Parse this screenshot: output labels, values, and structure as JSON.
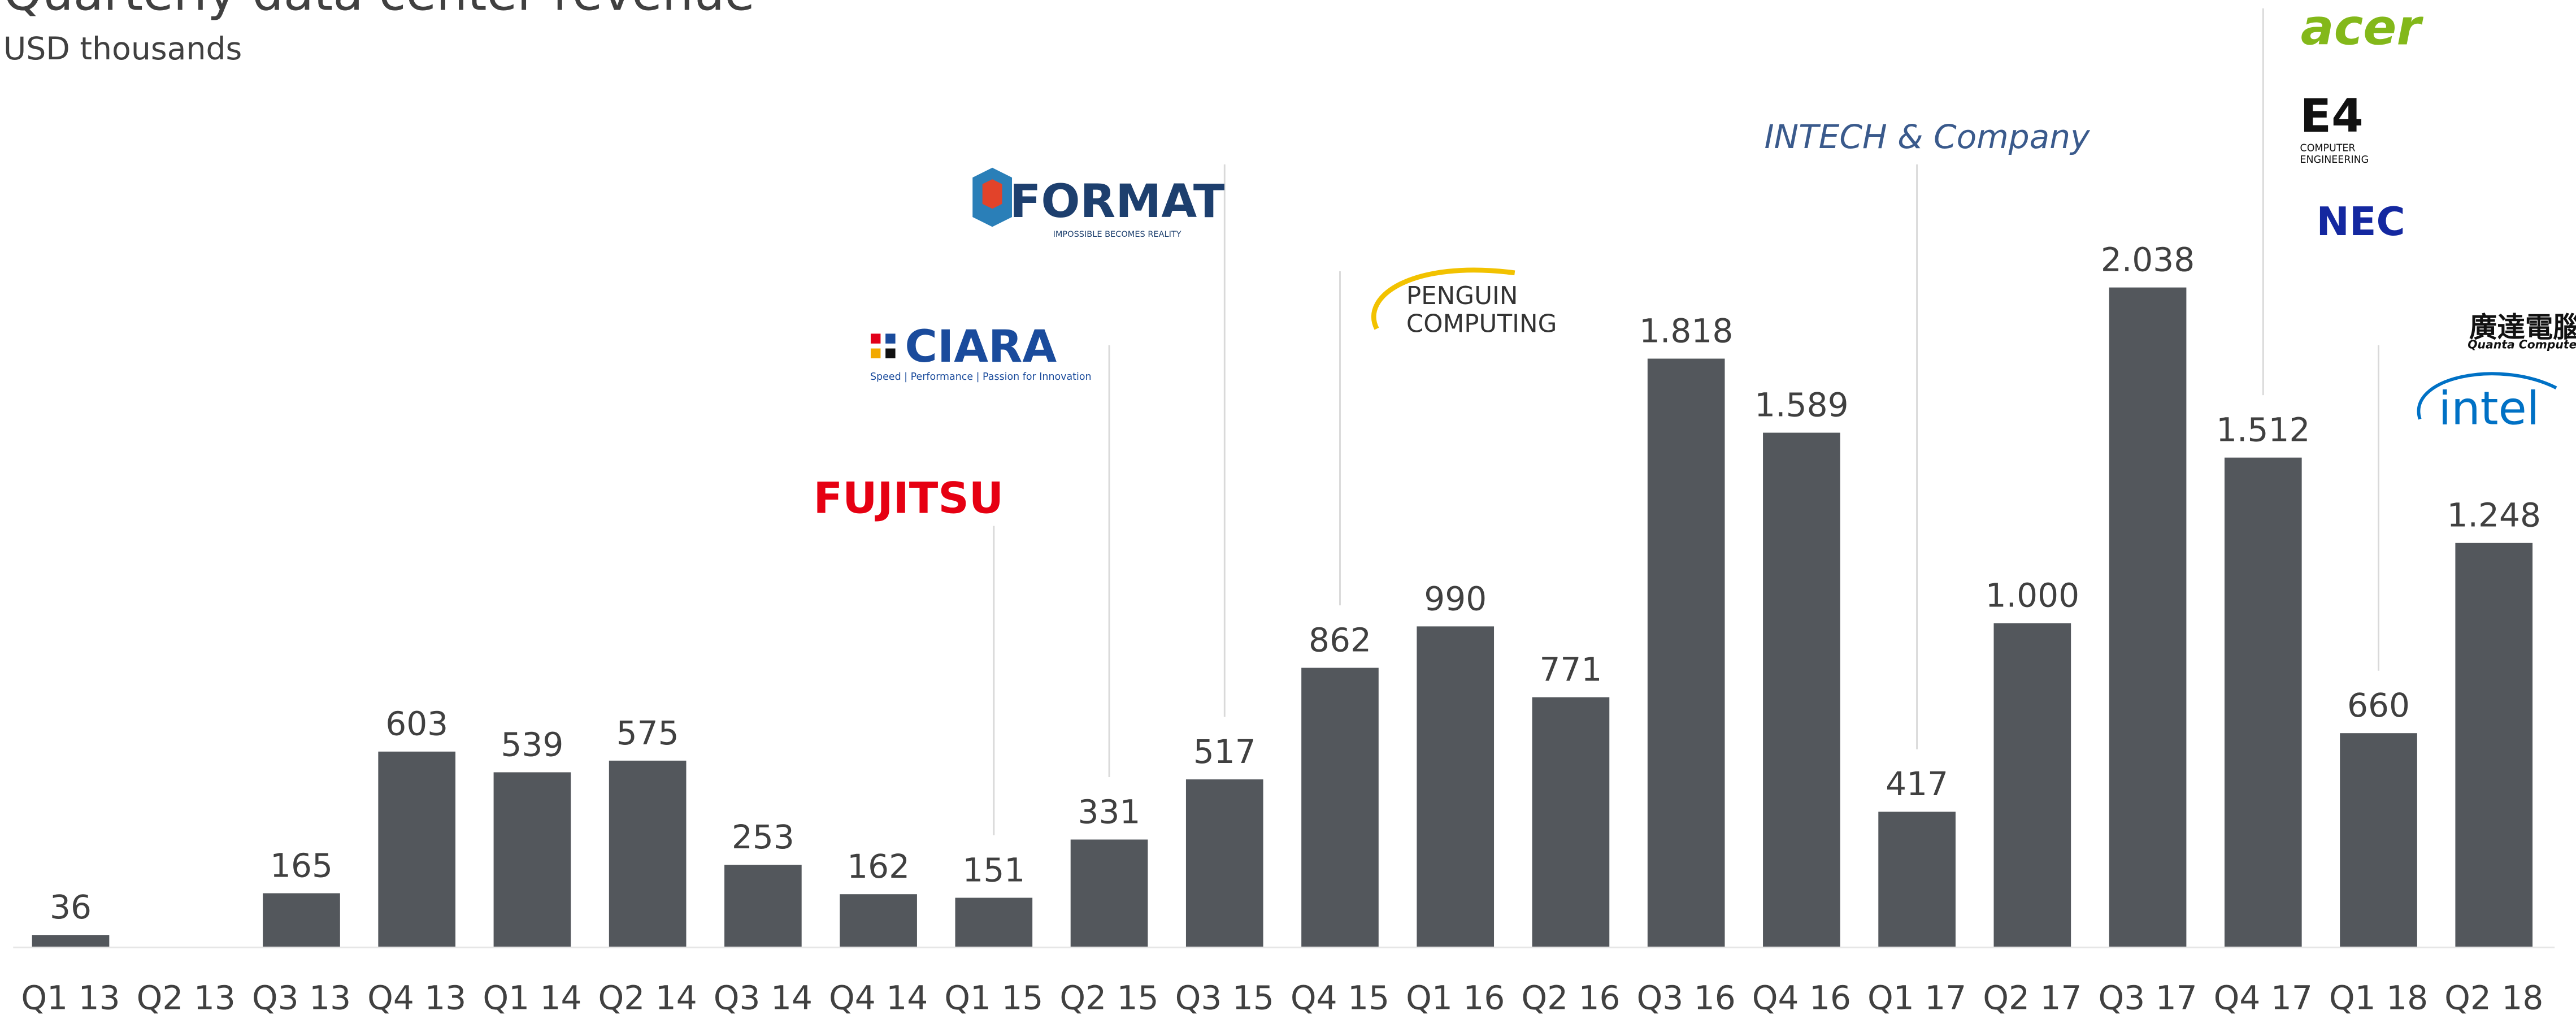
{
  "chart_data": {
    "type": "bar",
    "title": "Quarterly data center revenue",
    "subtitle": "USD thousands",
    "categories": [
      "Q1 13",
      "Q2 13",
      "Q3 13",
      "Q4 13",
      "Q1 14",
      "Q2 14",
      "Q3 14",
      "Q4 14",
      "Q1 15",
      "Q2 15",
      "Q3 15",
      "Q4 15",
      "Q1 16",
      "Q2 16",
      "Q3 16",
      "Q4 16",
      "Q1 17",
      "Q2 17",
      "Q3 17",
      "Q4 17",
      "Q1 18",
      "Q2 18"
    ],
    "values": [
      36,
      null,
      165,
      603,
      539,
      575,
      253,
      162,
      151,
      331,
      517,
      862,
      990,
      771,
      1818,
      1589,
      417,
      1000,
      2038,
      1512,
      660,
      1248
    ],
    "value_labels": [
      "36",
      null,
      "165",
      "603",
      "539",
      "575",
      "253",
      "162",
      "151",
      "331",
      "517",
      "862",
      "990",
      "771",
      "1.818",
      "1.589",
      "417",
      "1.000",
      "2.038",
      "1.512",
      "660",
      "1.248"
    ],
    "color": "#53575c",
    "ylim": [
      0,
      2200
    ],
    "annotations": [
      {
        "category": "Q1 15",
        "logos": [
          {
            "lines": [
              "FUJITSU"
            ],
            "color": "#e60012"
          }
        ]
      },
      {
        "category": "Q2 15",
        "logos": [
          {
            "lines": [
              "CIARA",
              "Speed | Performance | Passion for Innovation"
            ],
            "color": "#1a4b9c"
          }
        ]
      },
      {
        "category": "Q3 15",
        "logos": [
          {
            "lines": [
              "FORMAT",
              "IMPOSSIBLE BECOMES REALITY"
            ],
            "color": "#1d3f6e"
          }
        ]
      },
      {
        "category": "Q4 15",
        "logos": [
          {
            "lines": [
              "PENGUIN",
              "COMPUTING"
            ],
            "color": "#333333"
          }
        ]
      },
      {
        "category": "Q1 17",
        "logos": [
          {
            "lines": [
              "INTECH & Company"
            ],
            "color": "#3a5a8c"
          }
        ]
      },
      {
        "category": "Q4 17",
        "logos": [
          {
            "lines": [
              "acer"
            ],
            "color": "#83b81a"
          },
          {
            "lines": [
              "E4",
              "COMPUTER",
              "ENGINEERING"
            ],
            "color": "#111111"
          },
          {
            "lines": [
              "NEC"
            ],
            "color": "#1428a0"
          }
        ]
      },
      {
        "category": "Q1 18",
        "logos": [
          {
            "lines": [
              "廣達電腦",
              "Quanta Computer"
            ],
            "color": "#111111"
          },
          {
            "lines": [
              "intel"
            ],
            "color": "#0071c5"
          }
        ]
      }
    ]
  }
}
